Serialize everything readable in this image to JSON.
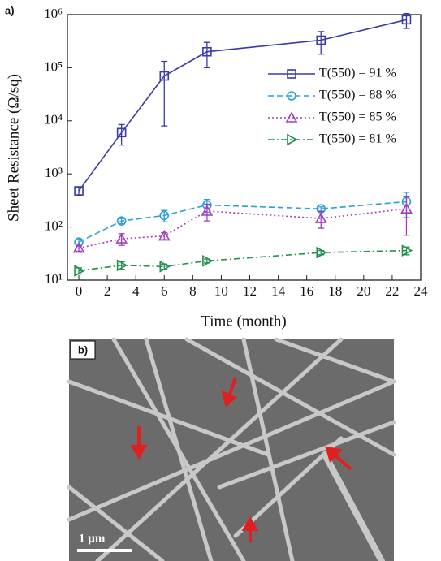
{
  "chart_data": {
    "type": "line",
    "panel_label": "a)",
    "xlabel": "Time (month)",
    "ylabel": "Sheet Resistance (Ω/sq)",
    "x": [
      0,
      3,
      6,
      9,
      17,
      23
    ],
    "xlim": [
      -0.8,
      24
    ],
    "xticks": [
      0,
      2,
      4,
      6,
      8,
      10,
      12,
      14,
      16,
      18,
      20,
      22,
      24
    ],
    "ylim": [
      10,
      1000000
    ],
    "yscale": "log",
    "yticks": [
      {
        "value": 10,
        "label": "10¹"
      },
      {
        "value": 100,
        "label": "10²"
      },
      {
        "value": 1000,
        "label": "10³"
      },
      {
        "value": 10000,
        "label": "10⁴"
      },
      {
        "value": 100000,
        "label": "10⁵"
      },
      {
        "value": 1000000,
        "label": "10⁶"
      }
    ],
    "legend": "upper right",
    "series": [
      {
        "name": "T(550) = 91 %",
        "color": "#3a3aa8",
        "dash": "solid",
        "marker": "square",
        "values": [
          480,
          6000,
          70000,
          200000,
          330000,
          800000
        ],
        "errors": [
          80,
          2500,
          62000,
          100000,
          150000,
          250000
        ]
      },
      {
        "name": "T(550) = 88 %",
        "color": "#2b9fdc",
        "dash": "dashed",
        "marker": "circle",
        "values": [
          52,
          130,
          165,
          260,
          220,
          300
        ],
        "errors": [
          8,
          15,
          40,
          70,
          20,
          150
        ]
      },
      {
        "name": "T(550) = 85 %",
        "color": "#a040c0",
        "dash": "dotted",
        "marker": "triangle-up",
        "values": [
          40,
          60,
          68,
          200,
          145,
          220
        ],
        "errors": [
          5,
          15,
          10,
          70,
          50,
          150
        ]
      },
      {
        "name": "T(550) = 81 %",
        "color": "#23904f",
        "dash": "dashdot",
        "marker": "triangle-right",
        "values": [
          15,
          19,
          18,
          23,
          33,
          36
        ],
        "errors": [
          2,
          3,
          2,
          2,
          3,
          6
        ]
      }
    ]
  },
  "image": {
    "panel_label": "b)",
    "scale_bar": "1 µm"
  }
}
